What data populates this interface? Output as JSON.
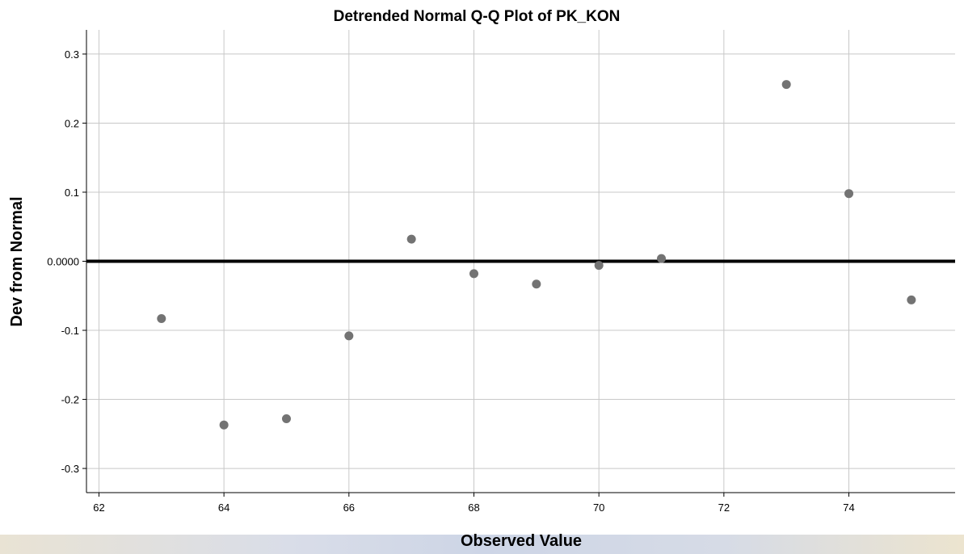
{
  "chart_data": {
    "type": "scatter",
    "title": "Detrended Normal Q-Q Plot of PK_KON",
    "xlabel": "Observed Value",
    "ylabel": "Dev from Normal",
    "xlim": [
      61.8,
      75.7
    ],
    "ylim": [
      -0.335,
      0.335
    ],
    "x_ticks": [
      "62",
      "64",
      "66",
      "68",
      "70",
      "72",
      "74"
    ],
    "y_ticks": [
      "0.3",
      "0.2",
      "0.1",
      "0.0000",
      "-0.1",
      "-0.2",
      "-0.3"
    ],
    "x_tick_values": [
      62,
      64,
      66,
      68,
      70,
      72,
      74
    ],
    "y_tick_values": [
      0.3,
      0.2,
      0.1,
      0,
      -0.1,
      -0.2,
      -0.3
    ],
    "reference_line": 0,
    "grid": true,
    "marker_color": "#737373",
    "points": [
      {
        "x": 63,
        "y": -0.083
      },
      {
        "x": 64,
        "y": -0.237
      },
      {
        "x": 65,
        "y": -0.228
      },
      {
        "x": 66,
        "y": -0.108
      },
      {
        "x": 67,
        "y": 0.032
      },
      {
        "x": 68,
        "y": -0.018
      },
      {
        "x": 69,
        "y": -0.033
      },
      {
        "x": 70,
        "y": -0.006
      },
      {
        "x": 71,
        "y": 0.004
      },
      {
        "x": 73,
        "y": 0.256
      },
      {
        "x": 74,
        "y": 0.098
      },
      {
        "x": 75,
        "y": -0.056
      }
    ]
  }
}
